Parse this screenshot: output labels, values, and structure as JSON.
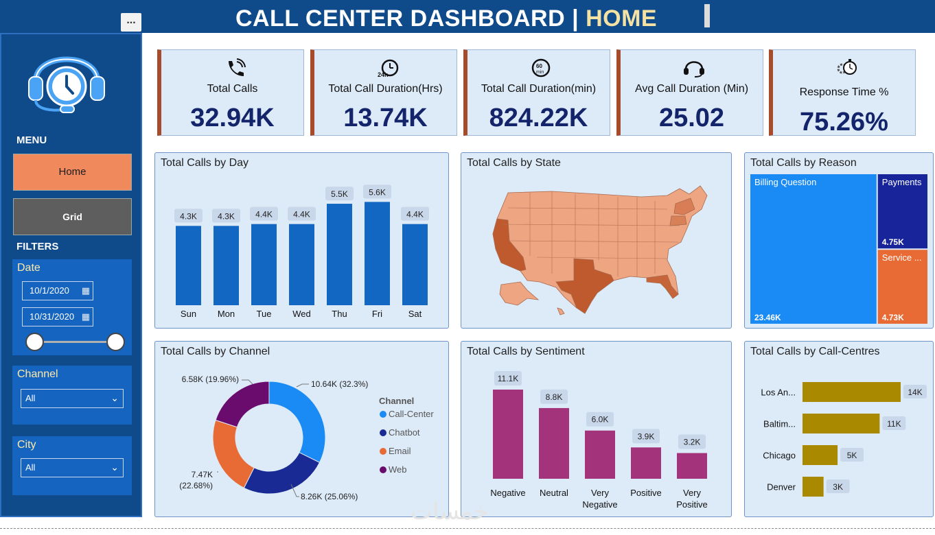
{
  "header": {
    "title": "CALL CENTER DASHBOARD |",
    "highlight": "HOME",
    "more": "..."
  },
  "sidebar": {
    "menu_label": "MENU",
    "nav": [
      {
        "label": "Home"
      },
      {
        "label": "Grid"
      }
    ],
    "filters_label": "FILTERS",
    "date": {
      "label": "Date",
      "start": "10/1/2020",
      "end": "10/31/2020"
    },
    "channel": {
      "label": "Channel",
      "value": "All"
    },
    "city": {
      "label": "City",
      "value": "All"
    }
  },
  "kpis": [
    {
      "icon": "phone-icon",
      "label": "Total Calls",
      "value": "32.94K"
    },
    {
      "icon": "clock-24h-icon",
      "label": "Total Call Duration(Hrs)",
      "value": "13.74K"
    },
    {
      "icon": "timer-60min-icon",
      "label": "Total Call Duration(min)",
      "value": "824.22K"
    },
    {
      "icon": "headset-icon",
      "label": "Avg Call Duration (Min)",
      "value": "25.02"
    },
    {
      "icon": "gear-clock-icon",
      "label": "Response Time %",
      "value": "75.26%"
    }
  ],
  "colors": {
    "header": "#0f4a8a",
    "kpi_accent": "#a84b2a",
    "day_bar": "#1267c2",
    "sentiment_bar": "#a3337a",
    "callcenter_bar": "#a88900",
    "channel": [
      "#1a8af5",
      "#1a2a94",
      "#e86b36",
      "#6a0b6e"
    ],
    "treemap": [
      "#1a8af5",
      "#17249a",
      "#e86b36"
    ]
  },
  "chart_data": [
    {
      "id": "day",
      "type": "bar",
      "title": "Total Calls by Day",
      "categories": [
        "Sun",
        "Mon",
        "Tue",
        "Wed",
        "Thu",
        "Fri",
        "Sat"
      ],
      "values": [
        4300,
        4300,
        4400,
        4400,
        5500,
        5600,
        4400
      ],
      "labels": [
        "4.3K",
        "4.3K",
        "4.4K",
        "4.4K",
        "5.5K",
        "5.6K",
        "4.4K"
      ],
      "ylim": [
        0,
        5800
      ]
    },
    {
      "id": "state",
      "type": "map",
      "title": "Total Calls by State"
    },
    {
      "id": "reason",
      "type": "treemap",
      "title": "Total Calls by Reason",
      "categories": [
        "Billing Question",
        "Payments",
        "Service ..."
      ],
      "values": [
        23460,
        4750,
        4730
      ],
      "labels": [
        "23.46K",
        "4.75K",
        "4.73K"
      ]
    },
    {
      "id": "channel",
      "type": "pie",
      "title": "Total Calls by Channel",
      "legend_title": "Channel",
      "categories": [
        "Call-Center",
        "Chatbot",
        "Email",
        "Web"
      ],
      "values": [
        10640,
        8260,
        7470,
        6580
      ],
      "labels": [
        "10.64K (32.3%)",
        "8.26K (25.06%)",
        "7.47K",
        "6.58K (19.96%)"
      ],
      "sublabels": [
        "",
        "",
        "(22.68%)",
        ""
      ]
    },
    {
      "id": "sentiment",
      "type": "bar",
      "title": "Total Calls by Sentiment",
      "categories": [
        "Negative",
        "Neutral",
        "Very Negative",
        "Positive",
        "Very Positive"
      ],
      "values": [
        11100,
        8800,
        6000,
        3900,
        3200
      ],
      "labels": [
        "11.1K",
        "8.8K",
        "6.0K",
        "3.9K",
        "3.2K"
      ],
      "ylim": [
        0,
        11100
      ]
    },
    {
      "id": "callcentre",
      "type": "bar",
      "orientation": "horizontal",
      "title": "Total Calls by Call-Centres",
      "categories": [
        "Los An...",
        "Baltim...",
        "Chicago",
        "Denver"
      ],
      "values": [
        14000,
        11000,
        5000,
        3000
      ],
      "labels": [
        "14K",
        "11K",
        "5K",
        "3K"
      ],
      "xlim": [
        0,
        14000
      ]
    }
  ],
  "watermark": "خمسات"
}
